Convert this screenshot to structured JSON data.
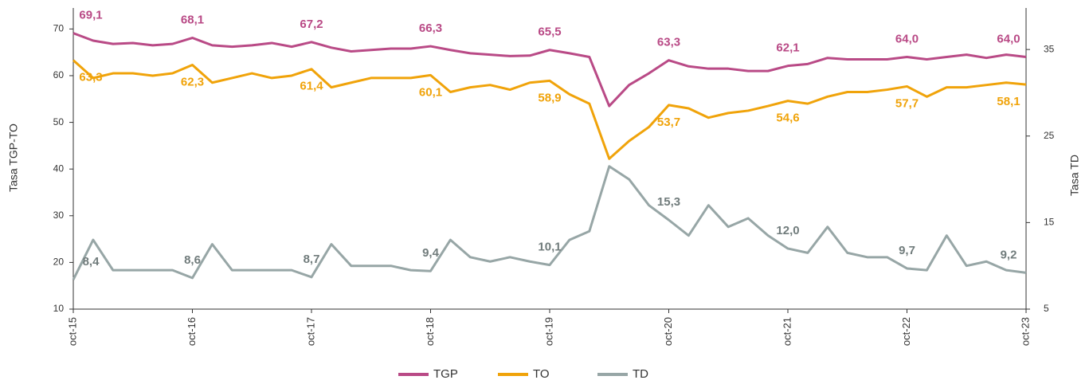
{
  "chart_data": {
    "type": "line",
    "y_label": "Tasa TGP-TO",
    "y2_label": "Tasa TD",
    "categories": [
      "oct-15",
      null,
      null,
      null,
      null,
      null,
      "oct-16",
      null,
      null,
      null,
      null,
      null,
      "oct-17",
      null,
      null,
      null,
      null,
      null,
      "oct-18",
      null,
      null,
      null,
      null,
      null,
      "oct-19",
      null,
      null,
      null,
      null,
      null,
      "oct-20",
      null,
      null,
      null,
      null,
      null,
      "oct-21",
      null,
      null,
      null,
      null,
      null,
      "oct-22",
      null,
      null,
      null,
      null,
      null,
      "oct-23"
    ],
    "ylim": [
      10,
      74.5
    ],
    "yticks": [
      10,
      20,
      30,
      40,
      50,
      60,
      70
    ],
    "y2lim": [
      5,
      39.8
    ],
    "y2ticks": [
      5,
      15,
      25,
      35
    ],
    "legend": "bottom",
    "series": [
      {
        "name": "TGP",
        "color": "#b94a86",
        "values": [
          69.1,
          67.5,
          66.8,
          67,
          66.5,
          66.8,
          68.1,
          66.5,
          66.2,
          66.5,
          67,
          66.2,
          67.2,
          66,
          65.2,
          65.5,
          65.8,
          65.8,
          66.3,
          65.5,
          64.8,
          64.5,
          64.2,
          64.3,
          65.5,
          64.8,
          64.0,
          53.5,
          58,
          60.5,
          63.3,
          62,
          61.5,
          61.5,
          61,
          61,
          62.1,
          62.5,
          63.8,
          63.5,
          63.5,
          63.5,
          64.0,
          63.5,
          64.0,
          64.5,
          63.8,
          64.5,
          64.0
        ],
        "value_labels": [
          "69,1",
          null,
          null,
          null,
          null,
          null,
          "68,1",
          null,
          null,
          null,
          null,
          null,
          "67,2",
          null,
          null,
          null,
          null,
          null,
          "66,3",
          null,
          null,
          null,
          null,
          null,
          "65,5",
          null,
          null,
          null,
          null,
          null,
          "63,3",
          null,
          null,
          null,
          null,
          null,
          "62,1",
          null,
          null,
          null,
          null,
          null,
          "64,0",
          null,
          null,
          null,
          null,
          null,
          "64,0"
        ]
      },
      {
        "name": "TO",
        "color": "#f0a30a",
        "values": [
          63.3,
          59.5,
          60.5,
          60.5,
          60,
          60.5,
          62.3,
          58.5,
          59.5,
          60.5,
          59.5,
          60,
          61.4,
          57.5,
          58.5,
          59.5,
          59.5,
          59.5,
          60.1,
          56.5,
          57.5,
          58,
          57,
          58.5,
          58.9,
          56,
          54,
          42.2,
          46,
          49,
          53.7,
          53,
          51,
          52,
          52.5,
          53.5,
          54.6,
          54,
          55.5,
          56.5,
          56.5,
          57,
          57.7,
          55.5,
          57.5,
          57.5,
          58,
          58.5,
          58.1
        ],
        "value_labels": [
          "63,3",
          null,
          null,
          null,
          null,
          null,
          "62,3",
          null,
          null,
          null,
          null,
          null,
          "61,4",
          null,
          null,
          null,
          null,
          null,
          "60,1",
          null,
          null,
          null,
          null,
          null,
          "58,9",
          null,
          null,
          null,
          null,
          null,
          "53,7",
          null,
          null,
          null,
          null,
          null,
          "54,6",
          null,
          null,
          null,
          null,
          null,
          "57,7",
          null,
          null,
          null,
          null,
          null,
          "58,1"
        ]
      },
      {
        "name": "TD",
        "color": "#97a6a6",
        "axis": "y2",
        "values": [
          8.4,
          13,
          9.5,
          9.5,
          9.5,
          9.5,
          8.6,
          12.5,
          9.5,
          9.5,
          9.5,
          9.5,
          8.7,
          12.5,
          10,
          10,
          10,
          9.5,
          9.4,
          13,
          11,
          10.5,
          11,
          10.5,
          10.1,
          13,
          14,
          21.5,
          20,
          17,
          15.3,
          13.5,
          17,
          14.5,
          15.5,
          13.5,
          12.0,
          11.5,
          14.5,
          11.5,
          11,
          11,
          9.7,
          9.5,
          13.5,
          10,
          10.5,
          9.5,
          9.2
        ],
        "value_labels": [
          "8,4",
          null,
          null,
          null,
          null,
          null,
          "8,6",
          null,
          null,
          null,
          null,
          null,
          "8,7",
          null,
          null,
          null,
          null,
          null,
          "9,4",
          null,
          null,
          null,
          null,
          null,
          "10,1",
          null,
          null,
          null,
          null,
          null,
          "15,3",
          null,
          null,
          null,
          null,
          null,
          "12,0",
          null,
          null,
          null,
          null,
          null,
          "9,7",
          null,
          null,
          null,
          null,
          null,
          "9,2"
        ]
      }
    ]
  }
}
